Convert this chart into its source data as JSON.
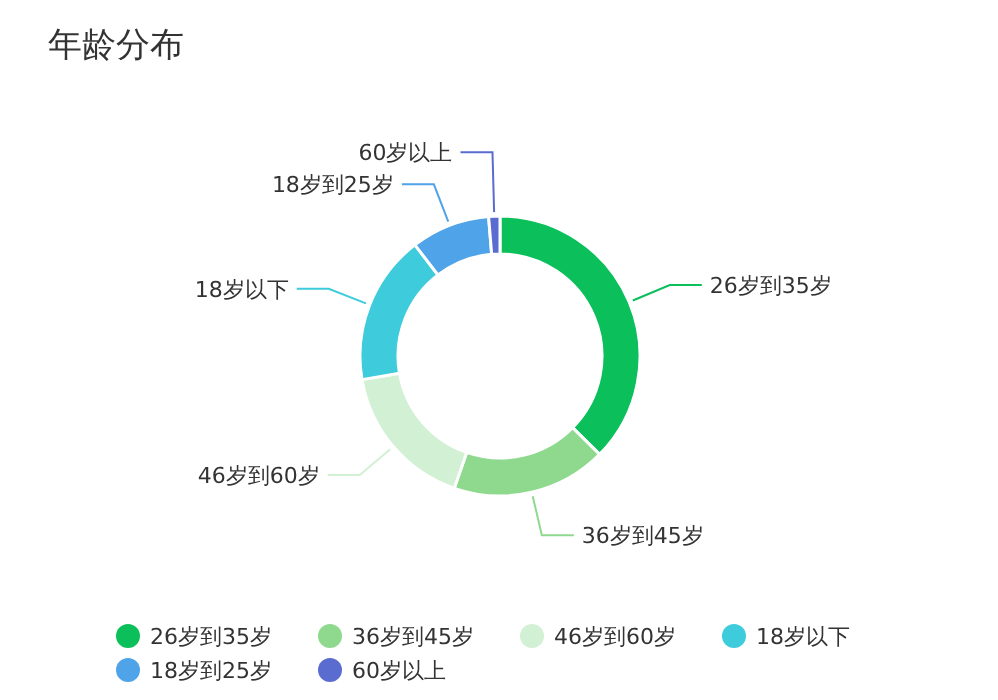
{
  "chart_data": {
    "type": "donut",
    "title": "年龄分布",
    "categories": [
      "26岁到35岁",
      "36岁到45岁",
      "46岁到60岁",
      "18岁以下",
      "18岁到25岁",
      "60岁以上"
    ],
    "values": [
      37.4,
      17.9,
      17,
      17.3,
      9.1,
      1.3
    ],
    "colors": [
      "#0bbf5b",
      "#8fd98f",
      "#d2f0d4",
      "#3ecbdc",
      "#4fa3e8",
      "#5a6ccf"
    ],
    "legend": "bottom"
  }
}
